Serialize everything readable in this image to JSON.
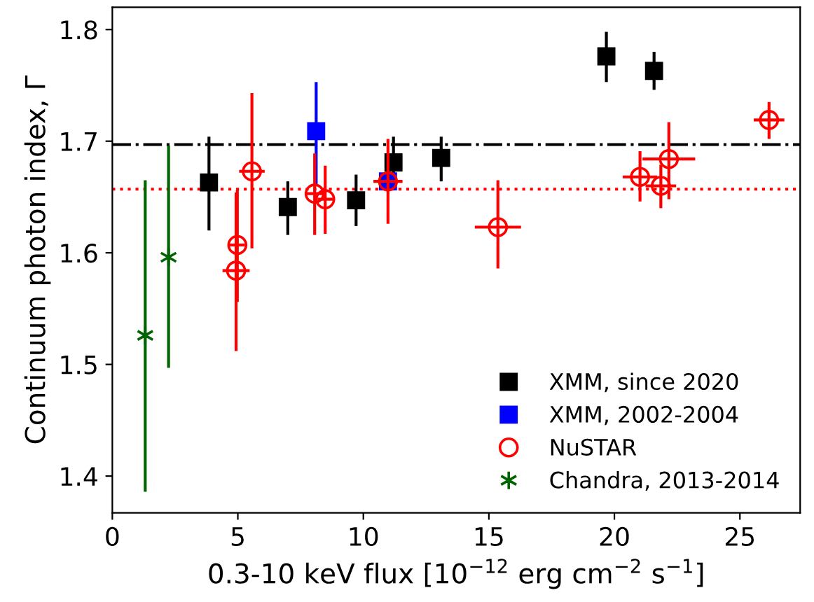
{
  "chart_data": {
    "type": "scatter",
    "xlabel": "0.3-10 keV flux [10$^{−12}$ erg cm$^{−2}$ s$^{−1}$]",
    "ylabel": "Continuum photon index, Γ",
    "xlim": [
      0,
      27.4
    ],
    "ylim": [
      1.367,
      1.82
    ],
    "xticks": [
      0,
      5,
      10,
      15,
      20,
      25
    ],
    "yticks": [
      1.4,
      1.5,
      1.6,
      1.7,
      1.8
    ],
    "grid": false,
    "legend": "bottom right",
    "series": [
      {
        "name": "XMM, since 2020",
        "color": "#000000",
        "marker": "square",
        "x": [
          3.85,
          6.99,
          9.71,
          11.2,
          13.1,
          19.68,
          21.58
        ],
        "values": [
          1.663,
          1.641,
          1.647,
          1.681,
          1.685,
          1.776,
          1.763
        ],
        "errors": [
          [
            1.62,
            1.704
          ],
          [
            1.616,
            1.664
          ],
          [
            1.624,
            1.67
          ],
          [
            1.664,
            1.704
          ],
          [
            1.664,
            1.704
          ],
          [
            1.753,
            1.798
          ],
          [
            1.746,
            1.78
          ]
        ]
      },
      {
        "name": "XMM, 2002-2004",
        "color": "#0000ff",
        "marker": "square",
        "x": [
          8.12,
          10.98
        ],
        "values": [
          1.709,
          1.664
        ],
        "errors": [
          [
            1.66,
            1.753
          ],
          null
        ]
      },
      {
        "name": "NuSTAR",
        "color": "#ff0000",
        "marker": "circle",
        "x": [
          4.98,
          4.93,
          5.56,
          8.06,
          8.48,
          10.98,
          15.36,
          21.02,
          21.85,
          22.17,
          26.16
        ],
        "values": [
          1.607,
          1.584,
          1.673,
          1.653,
          1.648,
          1.664,
          1.623,
          1.668,
          1.66,
          1.684,
          1.719
        ],
        "errors": [
          [
            1.556,
            1.656
          ],
          [
            1.512,
            1.654
          ],
          [
            1.604,
            1.743
          ],
          [
            1.616,
            1.689
          ],
          [
            1.617,
            1.678
          ],
          [
            1.626,
            1.702
          ],
          [
            1.586,
            1.665
          ],
          [
            1.646,
            1.691
          ],
          [
            1.64,
            1.679
          ],
          [
            1.648,
            1.717
          ],
          [
            1.702,
            1.735
          ]
        ],
        "xerrors": [
          0.3,
          0.54,
          0.51,
          0.36,
          0.3,
          0.58,
          0.92,
          0.69,
          0.61,
          1.05,
          0.61
        ]
      },
      {
        "name": "Chandra, 2013-2014",
        "color": "#006400",
        "marker": "cross",
        "x": [
          1.31,
          2.24
        ],
        "values": [
          1.526,
          1.596
        ],
        "errors": [
          [
            1.386,
            1.665
          ],
          [
            1.497,
            1.696
          ]
        ]
      }
    ],
    "ref_lines": [
      {
        "axis": "y",
        "value": 1.697,
        "color": "#000000",
        "line_style": "dashdot"
      },
      {
        "axis": "y",
        "value": 1.657,
        "color": "#ff0000",
        "line_style": "dotted"
      }
    ]
  }
}
